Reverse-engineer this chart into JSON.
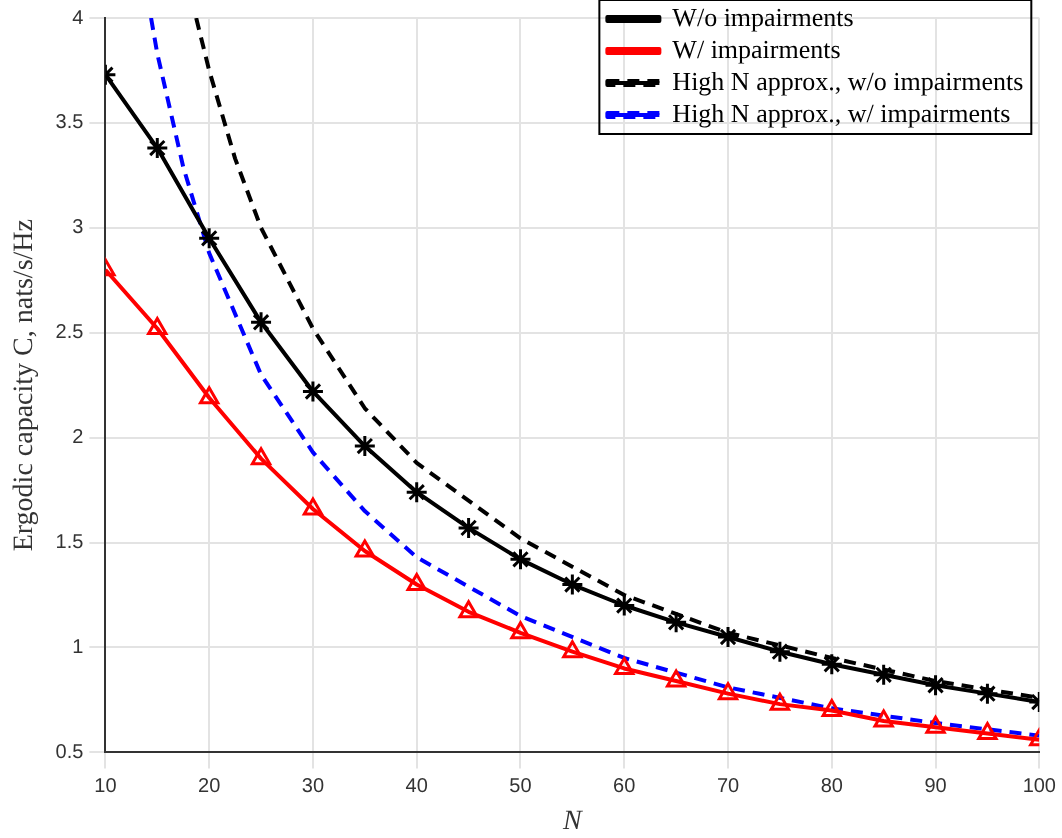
{
  "chart_data": {
    "type": "line",
    "xlabel": "N",
    "ylabel": "Ergodic capacity C, nats/s/Hz",
    "xlim": [
      10,
      100
    ],
    "xticks": [
      10,
      20,
      30,
      40,
      50,
      60,
      70,
      80,
      90,
      100
    ],
    "ylim": [
      0.5,
      4
    ],
    "yticks": [
      0.5,
      1,
      1.5,
      2,
      2.5,
      3,
      3.5,
      4
    ],
    "grid": true,
    "legend": "top right",
    "series": [
      {
        "name": "W/o impairments",
        "color": "#000000",
        "marker": "cross",
        "line_style": "solid",
        "x": [
          10,
          15,
          20,
          25,
          30,
          35,
          40,
          45,
          50,
          55,
          60,
          65,
          70,
          75,
          80,
          85,
          90,
          95,
          100
        ],
        "values": [
          3.73,
          3.38,
          2.95,
          2.55,
          2.22,
          1.96,
          1.74,
          1.57,
          1.42,
          1.3,
          1.2,
          1.12,
          1.05,
          0.98,
          0.92,
          0.87,
          0.82,
          0.78,
          0.74
        ]
      },
      {
        "name": "W/ impairments",
        "color": "#ff0000",
        "marker": "triangle",
        "line_style": "solid",
        "x": [
          10,
          15,
          20,
          25,
          30,
          35,
          40,
          45,
          50,
          55,
          60,
          65,
          70,
          75,
          80,
          85,
          90,
          95,
          100
        ],
        "values": [
          2.8,
          2.52,
          2.19,
          1.9,
          1.66,
          1.46,
          1.3,
          1.17,
          1.07,
          0.98,
          0.9,
          0.84,
          0.78,
          0.73,
          0.7,
          0.65,
          0.62,
          0.59,
          0.56
        ]
      },
      {
        "name": "High N approx., w/o impairments",
        "color": "#000000",
        "marker": "none",
        "line_style": "dashed",
        "x": [
          18.75,
          20,
          22.5,
          25,
          30,
          35,
          40,
          50,
          60,
          70,
          80,
          90,
          100
        ],
        "values": [
          4,
          3.75,
          3.33,
          3,
          2.52,
          2.14,
          1.88,
          1.52,
          1.25,
          1.07,
          0.95,
          0.84,
          0.76
        ]
      },
      {
        "name": "High N approx., w/ impairments",
        "color": "#0000ff",
        "marker": "none",
        "line_style": "dashed",
        "x": [
          14.4,
          15,
          17.5,
          20,
          25,
          30,
          35,
          40,
          50,
          60,
          70,
          80,
          90,
          100
        ],
        "values": [
          4,
          3.83,
          3.29,
          2.88,
          2.3,
          1.93,
          1.65,
          1.43,
          1.15,
          0.95,
          0.81,
          0.71,
          0.64,
          0.58
        ]
      }
    ]
  }
}
